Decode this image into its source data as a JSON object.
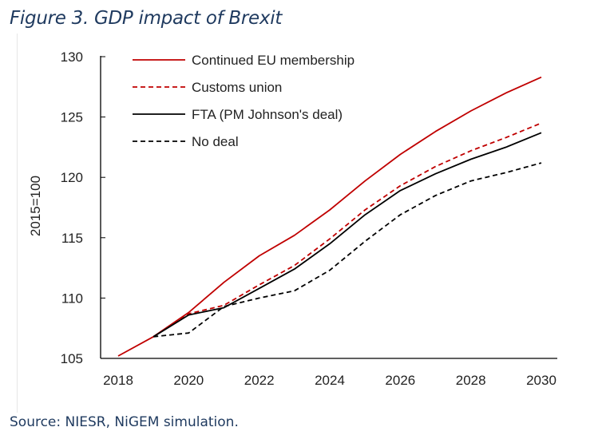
{
  "figure": {
    "title": "Figure 3. GDP impact of Brexit",
    "source": "Source: NIESR, NiGEM simulation."
  },
  "chart_data": {
    "type": "line",
    "title": "Figure 3. GDP impact of Brexit",
    "xlabel": "",
    "ylabel": "2015=100",
    "xlim": [
      2018,
      2030
    ],
    "ylim": [
      105,
      130
    ],
    "x_ticks": [
      "2018",
      "2020",
      "2022",
      "2024",
      "2026",
      "2028",
      "2030"
    ],
    "y_ticks": [
      "130",
      "125",
      "120",
      "115",
      "110",
      "105"
    ],
    "grid": false,
    "legend_position": "top-left",
    "series": [
      {
        "name": "Continued EU membership",
        "color": "#c00000",
        "dash": "solid",
        "x": [
          2018,
          2019,
          2020,
          2021,
          2022,
          2023,
          2024,
          2025,
          2026,
          2027,
          2028,
          2029,
          2030
        ],
        "values": [
          105.2,
          106.8,
          108.8,
          111.3,
          113.5,
          115.2,
          117.3,
          119.7,
          121.9,
          123.8,
          125.5,
          127.0,
          128.3
        ]
      },
      {
        "name": "Customs union",
        "color": "#c00000",
        "dash": "dashed",
        "x": [
          2019,
          2020,
          2021,
          2022,
          2023,
          2024,
          2025,
          2026,
          2027,
          2028,
          2029,
          2030
        ],
        "values": [
          106.8,
          108.7,
          109.4,
          111.1,
          112.7,
          114.9,
          117.3,
          119.3,
          120.9,
          122.2,
          123.3,
          124.5
        ]
      },
      {
        "name": "FTA (PM Johnson's deal)",
        "color": "#000000",
        "dash": "solid",
        "x": [
          2019,
          2020,
          2021,
          2022,
          2023,
          2024,
          2025,
          2026,
          2027,
          2028,
          2029,
          2030
        ],
        "values": [
          106.8,
          108.6,
          109.2,
          110.8,
          112.4,
          114.5,
          116.9,
          118.9,
          120.3,
          121.5,
          122.5,
          123.7
        ]
      },
      {
        "name": "No deal",
        "color": "#000000",
        "dash": "dashed",
        "x": [
          2019,
          2020,
          2021,
          2022,
          2023,
          2024,
          2025,
          2026,
          2027,
          2028,
          2029,
          2030
        ],
        "values": [
          106.8,
          107.1,
          109.3,
          110.0,
          110.6,
          112.3,
          114.7,
          116.9,
          118.5,
          119.7,
          120.4,
          121.2
        ]
      }
    ]
  }
}
